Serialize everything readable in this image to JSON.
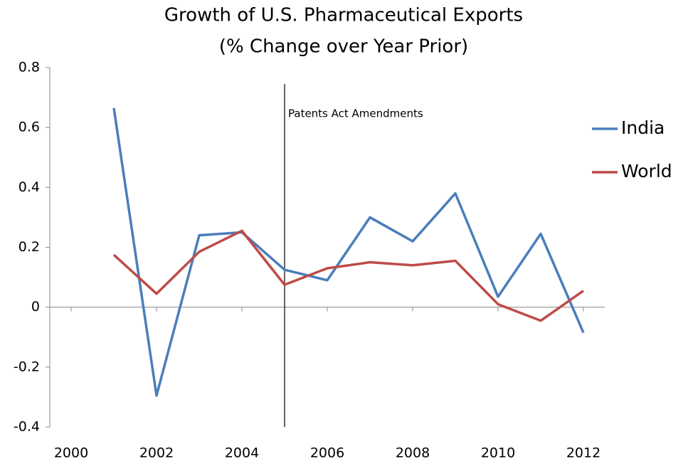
{
  "chart_data": {
    "type": "line",
    "title": "Growth of U.S. Pharmaceutical Exports",
    "subtitle": "(% Change over Year Prior)",
    "x": [
      2001,
      2002,
      2003,
      2004,
      2005,
      2006,
      2007,
      2008,
      2009,
      2010,
      2011,
      2012
    ],
    "series": [
      {
        "name": "India",
        "color": "#4a7ebb",
        "values": [
          0.665,
          -0.295,
          0.24,
          0.25,
          0.125,
          0.09,
          0.3,
          0.22,
          0.38,
          0.035,
          0.245,
          -0.085
        ]
      },
      {
        "name": "World",
        "color": "#be4b48",
        "values": [
          0.175,
          0.045,
          0.185,
          0.255,
          0.075,
          0.13,
          0.15,
          0.14,
          0.155,
          0.01,
          -0.045,
          0.055
        ]
      }
    ],
    "xlim": [
      1999.5,
      2012.5
    ],
    "xticks": [
      2000,
      2002,
      2004,
      2006,
      2008,
      2010,
      2012
    ],
    "ylim": [
      -0.4,
      0.8
    ],
    "yticks": [
      -0.4,
      -0.2,
      0,
      0.2,
      0.4,
      0.6,
      0.8
    ],
    "annotation": {
      "text": "Patents Act Amendments",
      "x": 2005
    },
    "legend": "right"
  }
}
